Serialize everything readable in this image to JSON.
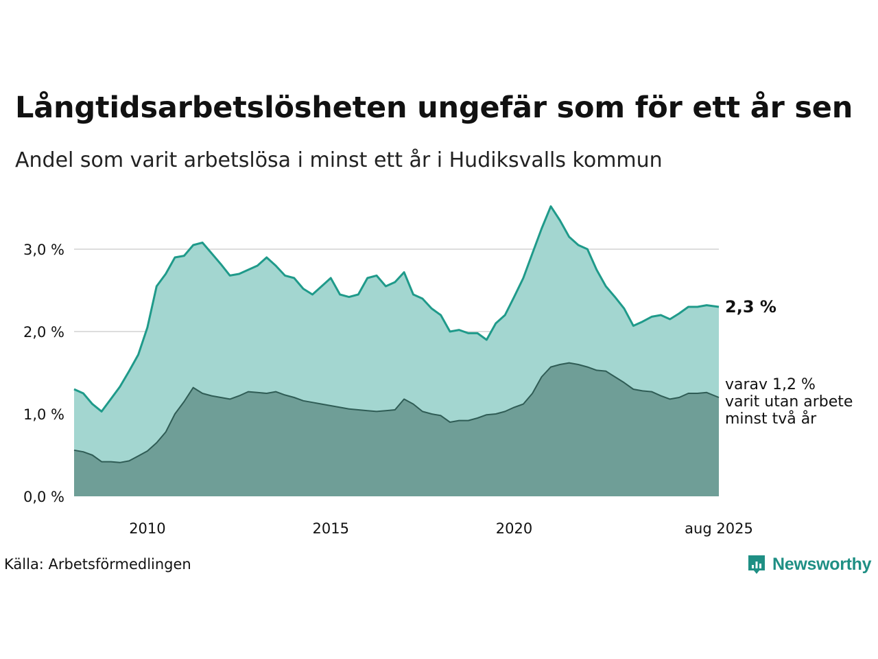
{
  "header": {
    "title": "Långtidsarbetslösheten ungefär som för ett år sen",
    "subtitle": "Andel som varit arbetslösa i minst ett år i Hudiksvalls kommun"
  },
  "footer": {
    "source": "Källa: Arbetsförmedlingen",
    "brand": "Newsworthy"
  },
  "colors": {
    "primary_line": "#1f9a8a",
    "primary_fill": "#a3d6d0",
    "secondary_line": "#2f5c55",
    "secondary_fill": "#6f9e97",
    "grid": "#dddddd",
    "brand": "#1f8f84"
  },
  "chart_data": {
    "type": "area",
    "x_range": [
      "2008-01",
      "2025-08"
    ],
    "ylim": [
      0,
      3.6
    ],
    "grid": true,
    "y_ticks": [
      {
        "value": 0,
        "label": "0,0 %"
      },
      {
        "value": 1,
        "label": "1,0 %"
      },
      {
        "value": 2,
        "label": "2,0 %"
      },
      {
        "value": 3,
        "label": "3,0 %"
      }
    ],
    "x_ticks": [
      {
        "date": "2010-01",
        "label": "2010"
      },
      {
        "date": "2015-01",
        "label": "2015"
      },
      {
        "date": "2020-01",
        "label": "2020"
      },
      {
        "date": "2025-08",
        "label": "aug 2025"
      }
    ],
    "series": [
      {
        "key": "minst_ett_ar",
        "label_lines": [
          "2,3 %"
        ],
        "points": [
          [
            "2008-01",
            1.3
          ],
          [
            "2008-04",
            1.25
          ],
          [
            "2008-07",
            1.12
          ],
          [
            "2008-10",
            1.03
          ],
          [
            "2009-01",
            1.18
          ],
          [
            "2009-04",
            1.33
          ],
          [
            "2009-07",
            1.52
          ],
          [
            "2009-10",
            1.72
          ],
          [
            "2010-01",
            2.05
          ],
          [
            "2010-04",
            2.55
          ],
          [
            "2010-07",
            2.7
          ],
          [
            "2010-10",
            2.9
          ],
          [
            "2011-01",
            2.92
          ],
          [
            "2011-04",
            3.05
          ],
          [
            "2011-07",
            3.08
          ],
          [
            "2011-10",
            2.95
          ],
          [
            "2012-01",
            2.82
          ],
          [
            "2012-04",
            2.68
          ],
          [
            "2012-07",
            2.7
          ],
          [
            "2012-10",
            2.75
          ],
          [
            "2013-01",
            2.8
          ],
          [
            "2013-04",
            2.9
          ],
          [
            "2013-07",
            2.8
          ],
          [
            "2013-10",
            2.68
          ],
          [
            "2014-01",
            2.65
          ],
          [
            "2014-04",
            2.52
          ],
          [
            "2014-07",
            2.45
          ],
          [
            "2014-10",
            2.55
          ],
          [
            "2015-01",
            2.65
          ],
          [
            "2015-04",
            2.45
          ],
          [
            "2015-07",
            2.42
          ],
          [
            "2015-10",
            2.45
          ],
          [
            "2016-01",
            2.65
          ],
          [
            "2016-04",
            2.68
          ],
          [
            "2016-07",
            2.55
          ],
          [
            "2016-10",
            2.6
          ],
          [
            "2017-01",
            2.72
          ],
          [
            "2017-04",
            2.45
          ],
          [
            "2017-07",
            2.4
          ],
          [
            "2017-10",
            2.28
          ],
          [
            "2018-01",
            2.2
          ],
          [
            "2018-04",
            2.0
          ],
          [
            "2018-07",
            2.02
          ],
          [
            "2018-10",
            1.98
          ],
          [
            "2019-01",
            1.98
          ],
          [
            "2019-04",
            1.9
          ],
          [
            "2019-07",
            2.1
          ],
          [
            "2019-10",
            2.2
          ],
          [
            "2020-01",
            2.42
          ],
          [
            "2020-04",
            2.65
          ],
          [
            "2020-07",
            2.95
          ],
          [
            "2020-10",
            3.25
          ],
          [
            "2021-01",
            3.52
          ],
          [
            "2021-04",
            3.35
          ],
          [
            "2021-07",
            3.15
          ],
          [
            "2021-10",
            3.05
          ],
          [
            "2022-01",
            3.0
          ],
          [
            "2022-04",
            2.75
          ],
          [
            "2022-07",
            2.55
          ],
          [
            "2022-10",
            2.42
          ],
          [
            "2023-01",
            2.28
          ],
          [
            "2023-04",
            2.07
          ],
          [
            "2023-07",
            2.12
          ],
          [
            "2023-10",
            2.18
          ],
          [
            "2024-01",
            2.2
          ],
          [
            "2024-04",
            2.15
          ],
          [
            "2024-07",
            2.22
          ],
          [
            "2024-10",
            2.3
          ],
          [
            "2025-01",
            2.3
          ],
          [
            "2025-04",
            2.32
          ],
          [
            "2025-08",
            2.3
          ]
        ]
      },
      {
        "key": "minst_tva_ar",
        "label_lines": [
          "varav 1,2 %",
          "varit utan arbete",
          "minst två år"
        ],
        "points": [
          [
            "2008-01",
            0.56
          ],
          [
            "2008-04",
            0.54
          ],
          [
            "2008-07",
            0.5
          ],
          [
            "2008-10",
            0.42
          ],
          [
            "2009-01",
            0.42
          ],
          [
            "2009-04",
            0.41
          ],
          [
            "2009-07",
            0.43
          ],
          [
            "2009-10",
            0.49
          ],
          [
            "2010-01",
            0.55
          ],
          [
            "2010-04",
            0.65
          ],
          [
            "2010-07",
            0.78
          ],
          [
            "2010-10",
            1.0
          ],
          [
            "2011-01",
            1.15
          ],
          [
            "2011-04",
            1.32
          ],
          [
            "2011-07",
            1.25
          ],
          [
            "2011-10",
            1.22
          ],
          [
            "2012-01",
            1.2
          ],
          [
            "2012-04",
            1.18
          ],
          [
            "2012-07",
            1.22
          ],
          [
            "2012-10",
            1.27
          ],
          [
            "2013-01",
            1.26
          ],
          [
            "2013-04",
            1.25
          ],
          [
            "2013-07",
            1.27
          ],
          [
            "2013-10",
            1.23
          ],
          [
            "2014-01",
            1.2
          ],
          [
            "2014-04",
            1.16
          ],
          [
            "2014-07",
            1.14
          ],
          [
            "2014-10",
            1.12
          ],
          [
            "2015-01",
            1.1
          ],
          [
            "2015-04",
            1.08
          ],
          [
            "2015-07",
            1.06
          ],
          [
            "2015-10",
            1.05
          ],
          [
            "2016-01",
            1.04
          ],
          [
            "2016-04",
            1.03
          ],
          [
            "2016-07",
            1.04
          ],
          [
            "2016-10",
            1.05
          ],
          [
            "2017-01",
            1.18
          ],
          [
            "2017-04",
            1.12
          ],
          [
            "2017-07",
            1.03
          ],
          [
            "2017-10",
            1.0
          ],
          [
            "2018-01",
            0.98
          ],
          [
            "2018-04",
            0.9
          ],
          [
            "2018-07",
            0.92
          ],
          [
            "2018-10",
            0.92
          ],
          [
            "2019-01",
            0.95
          ],
          [
            "2019-04",
            0.99
          ],
          [
            "2019-07",
            1.0
          ],
          [
            "2019-10",
            1.03
          ],
          [
            "2020-01",
            1.08
          ],
          [
            "2020-04",
            1.12
          ],
          [
            "2020-07",
            1.25
          ],
          [
            "2020-10",
            1.45
          ],
          [
            "2021-01",
            1.57
          ],
          [
            "2021-04",
            1.6
          ],
          [
            "2021-07",
            1.62
          ],
          [
            "2021-10",
            1.6
          ],
          [
            "2022-01",
            1.57
          ],
          [
            "2022-04",
            1.53
          ],
          [
            "2022-07",
            1.52
          ],
          [
            "2022-10",
            1.45
          ],
          [
            "2023-01",
            1.38
          ],
          [
            "2023-04",
            1.3
          ],
          [
            "2023-07",
            1.28
          ],
          [
            "2023-10",
            1.27
          ],
          [
            "2024-01",
            1.22
          ],
          [
            "2024-04",
            1.18
          ],
          [
            "2024-07",
            1.2
          ],
          [
            "2024-10",
            1.25
          ],
          [
            "2025-01",
            1.25
          ],
          [
            "2025-04",
            1.26
          ],
          [
            "2025-08",
            1.2
          ]
        ]
      }
    ]
  }
}
